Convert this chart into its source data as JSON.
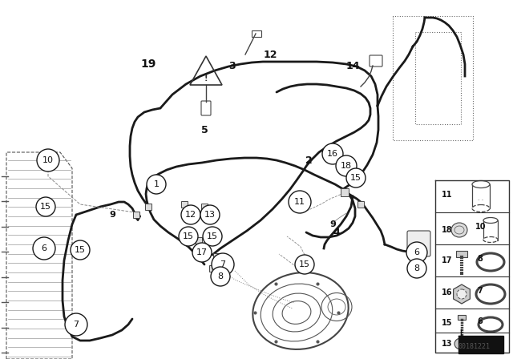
{
  "bg_color": "#ffffff",
  "fig_width": 6.4,
  "fig_height": 4.48,
  "watermark": "00181221",
  "pipe_color": "#1a1a1a",
  "text_color": "#111111"
}
